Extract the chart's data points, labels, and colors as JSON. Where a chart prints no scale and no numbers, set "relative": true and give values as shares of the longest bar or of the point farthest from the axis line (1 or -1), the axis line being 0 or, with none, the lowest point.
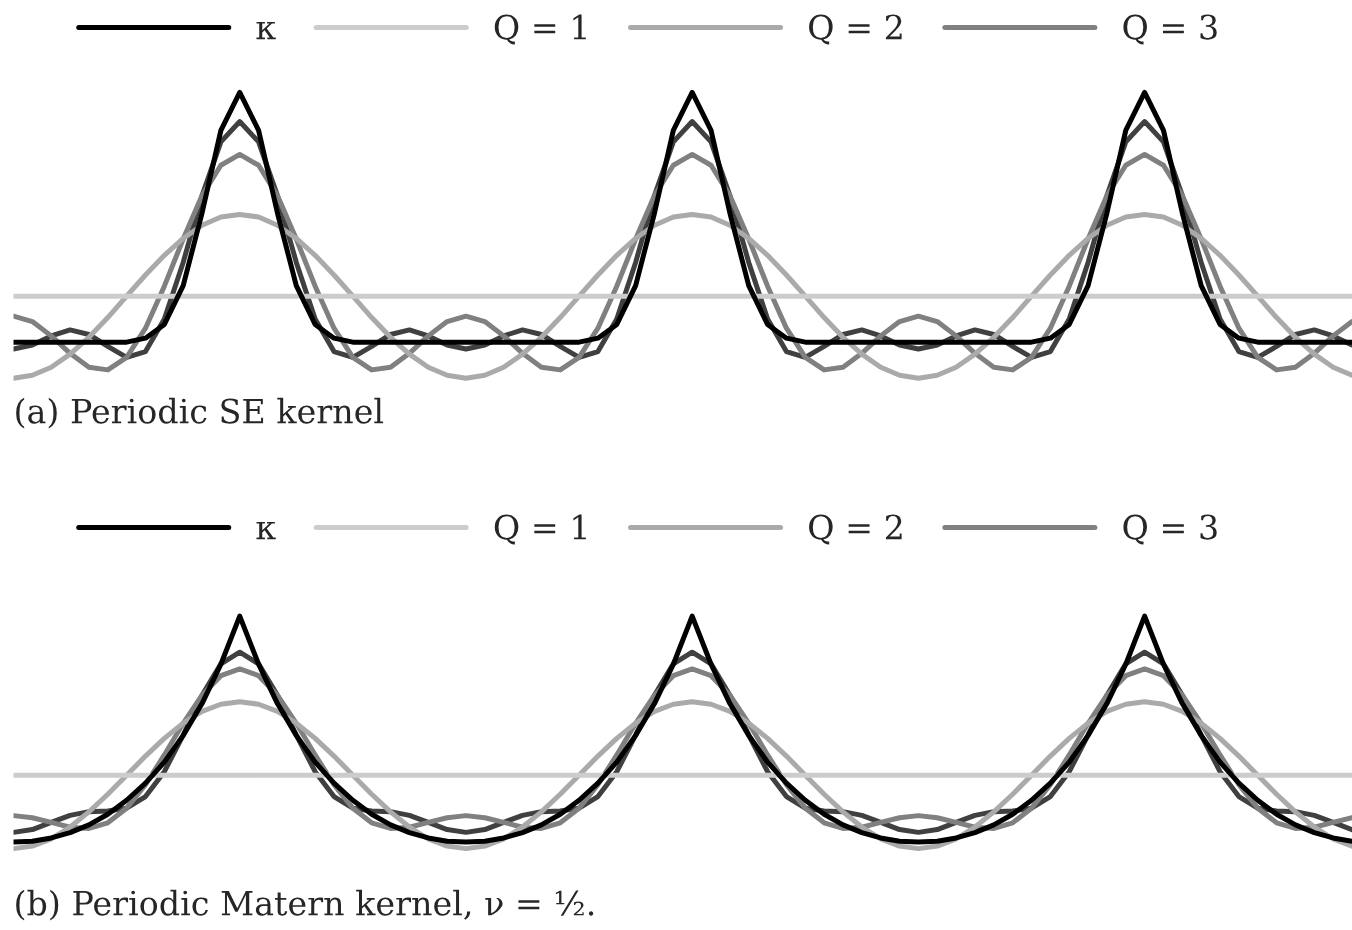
{
  "chart_data": [
    {
      "type": "line",
      "relative": true,
      "legend": "top",
      "annotations": [
        "(a) Periodic SE kernel"
      ],
      "categories": [
        null,
        null,
        null,
        null,
        null,
        null,
        null,
        null,
        null,
        null,
        null,
        null,
        null,
        null,
        null,
        null,
        null,
        null,
        null,
        null,
        null,
        null,
        null,
        null,
        null,
        null,
        null,
        null,
        null,
        null,
        null,
        null,
        null,
        null,
        null,
        null,
        null,
        null,
        null,
        null,
        null,
        null,
        null,
        null,
        null,
        null,
        null,
        null,
        null,
        null,
        null,
        null,
        null,
        null,
        null,
        null,
        null,
        null,
        null,
        null,
        null,
        null,
        null,
        null,
        null,
        null,
        null,
        null,
        null,
        null,
        null,
        null
      ],
      "series": [
        {
          "name": "κ",
          "color": "#000000",
          "values": [
            0.126,
            0.126,
            0.126,
            0.126,
            0.126,
            0.126,
            0.126,
            0.14,
            0.188,
            0.324,
            0.578,
            0.867,
            1.0,
            0.867,
            0.578,
            0.324,
            0.188,
            0.14,
            0.126,
            0.126,
            0.126,
            0.126,
            0.126,
            0.126,
            0.126,
            0.126,
            0.126,
            0.126,
            0.126,
            0.126,
            0.126,
            0.14,
            0.188,
            0.324,
            0.578,
            0.867,
            1.0,
            0.867,
            0.578,
            0.324,
            0.188,
            0.14,
            0.126,
            0.126,
            0.126,
            0.126,
            0.126,
            0.126,
            0.126,
            0.126,
            0.126,
            0.126,
            0.126,
            0.126,
            0.126,
            0.14,
            0.188,
            0.324,
            0.578,
            0.867,
            1.0,
            0.867,
            0.578,
            0.324,
            0.188,
            0.14,
            0.126,
            0.126,
            0.126,
            0.126,
            0.126,
            0.126
          ]
        },
        {
          "name": "Q = 1",
          "color": "#cccccc",
          "values": [
            0.287,
            0.287,
            0.287,
            0.287,
            0.287,
            0.287,
            0.287,
            0.287,
            0.287,
            0.287,
            0.287,
            0.287,
            0.287,
            0.287,
            0.287,
            0.287,
            0.287,
            0.287,
            0.287,
            0.287,
            0.287,
            0.287,
            0.287,
            0.287,
            0.287,
            0.287,
            0.287,
            0.287,
            0.287,
            0.287,
            0.287,
            0.287,
            0.287,
            0.287,
            0.287,
            0.287,
            0.287,
            0.287,
            0.287,
            0.287,
            0.287,
            0.287,
            0.287,
            0.287,
            0.287,
            0.287,
            0.287,
            0.287,
            0.287,
            0.287,
            0.287,
            0.287,
            0.287,
            0.287,
            0.287,
            0.287,
            0.287,
            0.287,
            0.287,
            0.287,
            0.287,
            0.287,
            0.287,
            0.287,
            0.287,
            0.287,
            0.287,
            0.287,
            0.287,
            0.287,
            0.287,
            0.287
          ]
        },
        {
          "name": "Q = 2",
          "color": "#aaaaaa",
          "values": [
            0,
            0.01,
            0.038,
            0.084,
            0.143,
            0.212,
            0.287,
            0.361,
            0.43,
            0.489,
            0.535,
            0.564,
            0.573,
            0.564,
            0.535,
            0.489,
            0.43,
            0.361,
            0.287,
            0.212,
            0.143,
            0.084,
            0.038,
            0.01,
            0,
            0.01,
            0.038,
            0.084,
            0.143,
            0.212,
            0.287,
            0.361,
            0.43,
            0.489,
            0.535,
            0.564,
            0.573,
            0.564,
            0.535,
            0.489,
            0.43,
            0.361,
            0.287,
            0.212,
            0.143,
            0.084,
            0.038,
            0.01,
            0,
            0.01,
            0.038,
            0.084,
            0.143,
            0.212,
            0.287,
            0.361,
            0.43,
            0.489,
            0.535,
            0.564,
            0.573,
            0.564,
            0.535,
            0.489,
            0.43,
            0.361,
            0.287,
            0.212,
            0.143,
            0.084,
            0.038,
            0.01
          ]
        },
        {
          "name": "Q = 3",
          "color": "#808080",
          "values": [
            0.217,
            0.198,
            0.148,
            0.087,
            0.038,
            0.029,
            0.073,
            0.175,
            0.322,
            0.487,
            0.639,
            0.745,
            0.783,
            0.745,
            0.639,
            0.487,
            0.322,
            0.175,
            0.073,
            0.029,
            0.038,
            0.087,
            0.148,
            0.198,
            0.217,
            0.198,
            0.148,
            0.087,
            0.038,
            0.029,
            0.073,
            0.175,
            0.322,
            0.487,
            0.639,
            0.745,
            0.783,
            0.745,
            0.639,
            0.487,
            0.322,
            0.175,
            0.073,
            0.029,
            0.038,
            0.087,
            0.148,
            0.198,
            0.217,
            0.198,
            0.148,
            0.087,
            0.038,
            0.029,
            0.073,
            0.175,
            0.322,
            0.487,
            0.639,
            0.745,
            0.783,
            0.745,
            0.639,
            0.487,
            0.322,
            0.175,
            0.073,
            0.029,
            0.038,
            0.087,
            0.148,
            0.198
          ]
        },
        {
          "color": "#404040",
          "values": [
            0.102,
            0.116,
            0.148,
            0.169,
            0.153,
            0.111,
            0.073,
            0.093,
            0.207,
            0.405,
            0.639,
            0.827,
            0.898,
            0.827,
            0.639,
            0.405,
            0.207,
            0.093,
            0.073,
            0.111,
            0.153,
            0.169,
            0.148,
            0.116,
            0.102,
            0.116,
            0.148,
            0.169,
            0.153,
            0.111,
            0.073,
            0.093,
            0.207,
            0.405,
            0.639,
            0.827,
            0.898,
            0.827,
            0.639,
            0.405,
            0.207,
            0.093,
            0.073,
            0.111,
            0.153,
            0.169,
            0.148,
            0.116,
            0.102,
            0.116,
            0.148,
            0.169,
            0.153,
            0.111,
            0.073,
            0.093,
            0.207,
            0.405,
            0.639,
            0.827,
            0.898,
            0.827,
            0.639,
            0.405,
            0.207,
            0.093,
            0.073,
            0.111,
            0.153,
            0.169,
            0.148,
            0.116
          ]
        }
      ]
    },
    {
      "type": "line",
      "relative": true,
      "legend": "top",
      "annotations": [
        "(b) Periodic Matern kernel, ν = ½."
      ],
      "categories": [
        null,
        null,
        null,
        null,
        null,
        null,
        null,
        null,
        null,
        null,
        null,
        null,
        null,
        null,
        null,
        null,
        null,
        null,
        null,
        null,
        null,
        null,
        null,
        null,
        null,
        null,
        null,
        null,
        null,
        null,
        null,
        null,
        null,
        null,
        null,
        null,
        null,
        null,
        null,
        null,
        null,
        null,
        null,
        null,
        null,
        null,
        null,
        null,
        null,
        null,
        null,
        null,
        null,
        null,
        null,
        null,
        null,
        null,
        null,
        null,
        null,
        null,
        null,
        null,
        null,
        null,
        null,
        null,
        null,
        null,
        null,
        null
      ],
      "series": [
        {
          "name": "κ",
          "color": "#000000",
          "values": [
            0.028,
            0.032,
            0.046,
            0.069,
            0.102,
            0.148,
            0.208,
            0.282,
            0.372,
            0.487,
            0.624,
            0.793,
            1.0,
            0.793,
            0.624,
            0.487,
            0.372,
            0.282,
            0.208,
            0.148,
            0.102,
            0.069,
            0.046,
            0.032,
            0.028,
            0.032,
            0.046,
            0.069,
            0.102,
            0.148,
            0.208,
            0.282,
            0.372,
            0.487,
            0.624,
            0.793,
            1.0,
            0.793,
            0.624,
            0.487,
            0.372,
            0.282,
            0.208,
            0.148,
            0.102,
            0.069,
            0.046,
            0.032,
            0.028,
            0.032,
            0.046,
            0.069,
            0.102,
            0.148,
            0.208,
            0.282,
            0.372,
            0.487,
            0.624,
            0.793,
            1.0,
            0.793,
            0.624,
            0.487,
            0.372,
            0.282,
            0.208,
            0.148,
            0.102,
            0.069,
            0.046,
            0.032
          ]
        },
        {
          "name": "Q = 1",
          "color": "#cccccc",
          "values": [
            0.316,
            0.316,
            0.316,
            0.316,
            0.316,
            0.316,
            0.316,
            0.316,
            0.316,
            0.316,
            0.316,
            0.316,
            0.316,
            0.316,
            0.316,
            0.316,
            0.316,
            0.316,
            0.316,
            0.316,
            0.316,
            0.316,
            0.316,
            0.316,
            0.316,
            0.316,
            0.316,
            0.316,
            0.316,
            0.316,
            0.316,
            0.316,
            0.316,
            0.316,
            0.316,
            0.316,
            0.316,
            0.316,
            0.316,
            0.316,
            0.316,
            0.316,
            0.316,
            0.316,
            0.316,
            0.316,
            0.316,
            0.316,
            0.316,
            0.316,
            0.316,
            0.316,
            0.316,
            0.316,
            0.316,
            0.316,
            0.316,
            0.316,
            0.316,
            0.316,
            0.316,
            0.316,
            0.316,
            0.316,
            0.316,
            0.316,
            0.316,
            0.316,
            0.316,
            0.316,
            0.316,
            0.316
          ]
        },
        {
          "name": "Q = 2",
          "color": "#aaaaaa",
          "values": [
            0,
            0.011,
            0.042,
            0.093,
            0.158,
            0.234,
            0.316,
            0.398,
            0.474,
            0.54,
            0.59,
            0.621,
            0.632,
            0.621,
            0.59,
            0.54,
            0.474,
            0.398,
            0.316,
            0.234,
            0.158,
            0.093,
            0.042,
            0.011,
            0,
            0.011,
            0.042,
            0.093,
            0.158,
            0.234,
            0.316,
            0.398,
            0.474,
            0.54,
            0.59,
            0.621,
            0.632,
            0.621,
            0.59,
            0.54,
            0.474,
            0.398,
            0.316,
            0.234,
            0.158,
            0.093,
            0.042,
            0.011,
            0,
            0.011,
            0.042,
            0.093,
            0.158,
            0.234,
            0.316,
            0.398,
            0.474,
            0.54,
            0.59,
            0.621,
            0.632,
            0.621,
            0.59,
            0.54,
            0.474,
            0.398,
            0.316,
            0.234,
            0.158,
            0.093,
            0.042,
            0.011
          ]
        },
        {
          "name": "Q = 3",
          "color": "#808080",
          "values": [
            0.142,
            0.133,
            0.113,
            0.092,
            0.087,
            0.111,
            0.174,
            0.275,
            0.403,
            0.539,
            0.66,
            0.744,
            0.773,
            0.744,
            0.66,
            0.539,
            0.403,
            0.275,
            0.174,
            0.111,
            0.087,
            0.092,
            0.113,
            0.133,
            0.142,
            0.133,
            0.113,
            0.092,
            0.087,
            0.111,
            0.174,
            0.275,
            0.403,
            0.539,
            0.66,
            0.744,
            0.773,
            0.744,
            0.66,
            0.539,
            0.403,
            0.275,
            0.174,
            0.111,
            0.087,
            0.092,
            0.113,
            0.133,
            0.142,
            0.133,
            0.113,
            0.092,
            0.087,
            0.111,
            0.174,
            0.275,
            0.403,
            0.539,
            0.66,
            0.744,
            0.773,
            0.744,
            0.66,
            0.539,
            0.403,
            0.275,
            0.174,
            0.111,
            0.087,
            0.092,
            0.113,
            0.133
          ]
        },
        {
          "color": "#404040",
          "values": [
            0.07,
            0.082,
            0.113,
            0.143,
            0.159,
            0.162,
            0.174,
            0.224,
            0.331,
            0.488,
            0.66,
            0.795,
            0.845,
            0.795,
            0.66,
            0.488,
            0.331,
            0.224,
            0.174,
            0.162,
            0.159,
            0.143,
            0.113,
            0.082,
            0.07,
            0.082,
            0.113,
            0.143,
            0.159,
            0.162,
            0.174,
            0.224,
            0.331,
            0.488,
            0.66,
            0.795,
            0.845,
            0.795,
            0.66,
            0.488,
            0.331,
            0.224,
            0.174,
            0.162,
            0.159,
            0.143,
            0.113,
            0.082,
            0.07,
            0.082,
            0.113,
            0.143,
            0.159,
            0.162,
            0.174,
            0.224,
            0.331,
            0.488,
            0.66,
            0.795,
            0.845,
            0.795,
            0.66,
            0.488,
            0.331,
            0.224,
            0.174,
            0.162,
            0.159,
            0.143,
            0.113,
            0.082
          ]
        }
      ]
    }
  ]
}
